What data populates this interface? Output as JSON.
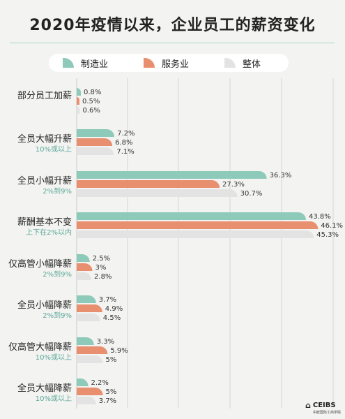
{
  "title": "2020年疫情以来，企业员工的薪资变化",
  "legend": [
    {
      "name": "制造业",
      "color": "#8ecab9"
    },
    {
      "name": "服务业",
      "color": "#e88f70"
    },
    {
      "name": "整体",
      "color": "#e3e3e3"
    }
  ],
  "logo": {
    "text": "CEIBS",
    "sub": "中欧国际工商学院"
  },
  "chart_data": {
    "type": "bar",
    "orientation": "horizontal",
    "title": "2020年疫情以来，企业员工的薪资变化",
    "unit": "%",
    "xlim": [
      0,
      45
    ],
    "grid": true,
    "legend_position": "top",
    "categories": [
      {
        "label": "部分员工加薪",
        "sub": ""
      },
      {
        "label": "全员大幅升薪",
        "sub": "10%或以上"
      },
      {
        "label": "全员小幅升薪",
        "sub": "2%到9%"
      },
      {
        "label": "薪酬基本不变",
        "sub": "上下在2%以内"
      },
      {
        "label": "仅高管小幅降薪",
        "sub": "2%到9%"
      },
      {
        "label": "全员小幅降薪",
        "sub": "2%到9%"
      },
      {
        "label": "仅高管大幅降薪",
        "sub": "10%或以上"
      },
      {
        "label": "全员大幅降薪",
        "sub": "10%或以上"
      }
    ],
    "series": [
      {
        "name": "制造业",
        "color": "#8ecab9",
        "values": [
          0.8,
          7.2,
          36.3,
          43.8,
          2.5,
          3.7,
          3.3,
          2.2
        ],
        "labels": [
          "0.8%",
          "7.2%",
          "36.3%",
          "43.8%",
          "2.5%",
          "3.7%",
          "3.3%",
          "2.2%"
        ]
      },
      {
        "name": "服务业",
        "color": "#e88f70",
        "values": [
          0.5,
          6.8,
          27.3,
          46.1,
          3,
          4.9,
          5.9,
          5
        ],
        "labels": [
          "0.5%",
          "6.8%",
          "27.3%",
          "46.1%",
          "3%",
          "4.9%",
          "5.9%",
          "5%"
        ]
      },
      {
        "name": "整体",
        "color": "#e3e3e3",
        "values": [
          0.6,
          7.1,
          30.7,
          45.3,
          2.8,
          4.5,
          5,
          3.7
        ],
        "labels": [
          "0.6%",
          "7.1%",
          "30.7%",
          "45.3%",
          "2.8%",
          "4.5%",
          "5%",
          "3.7%"
        ]
      }
    ]
  }
}
